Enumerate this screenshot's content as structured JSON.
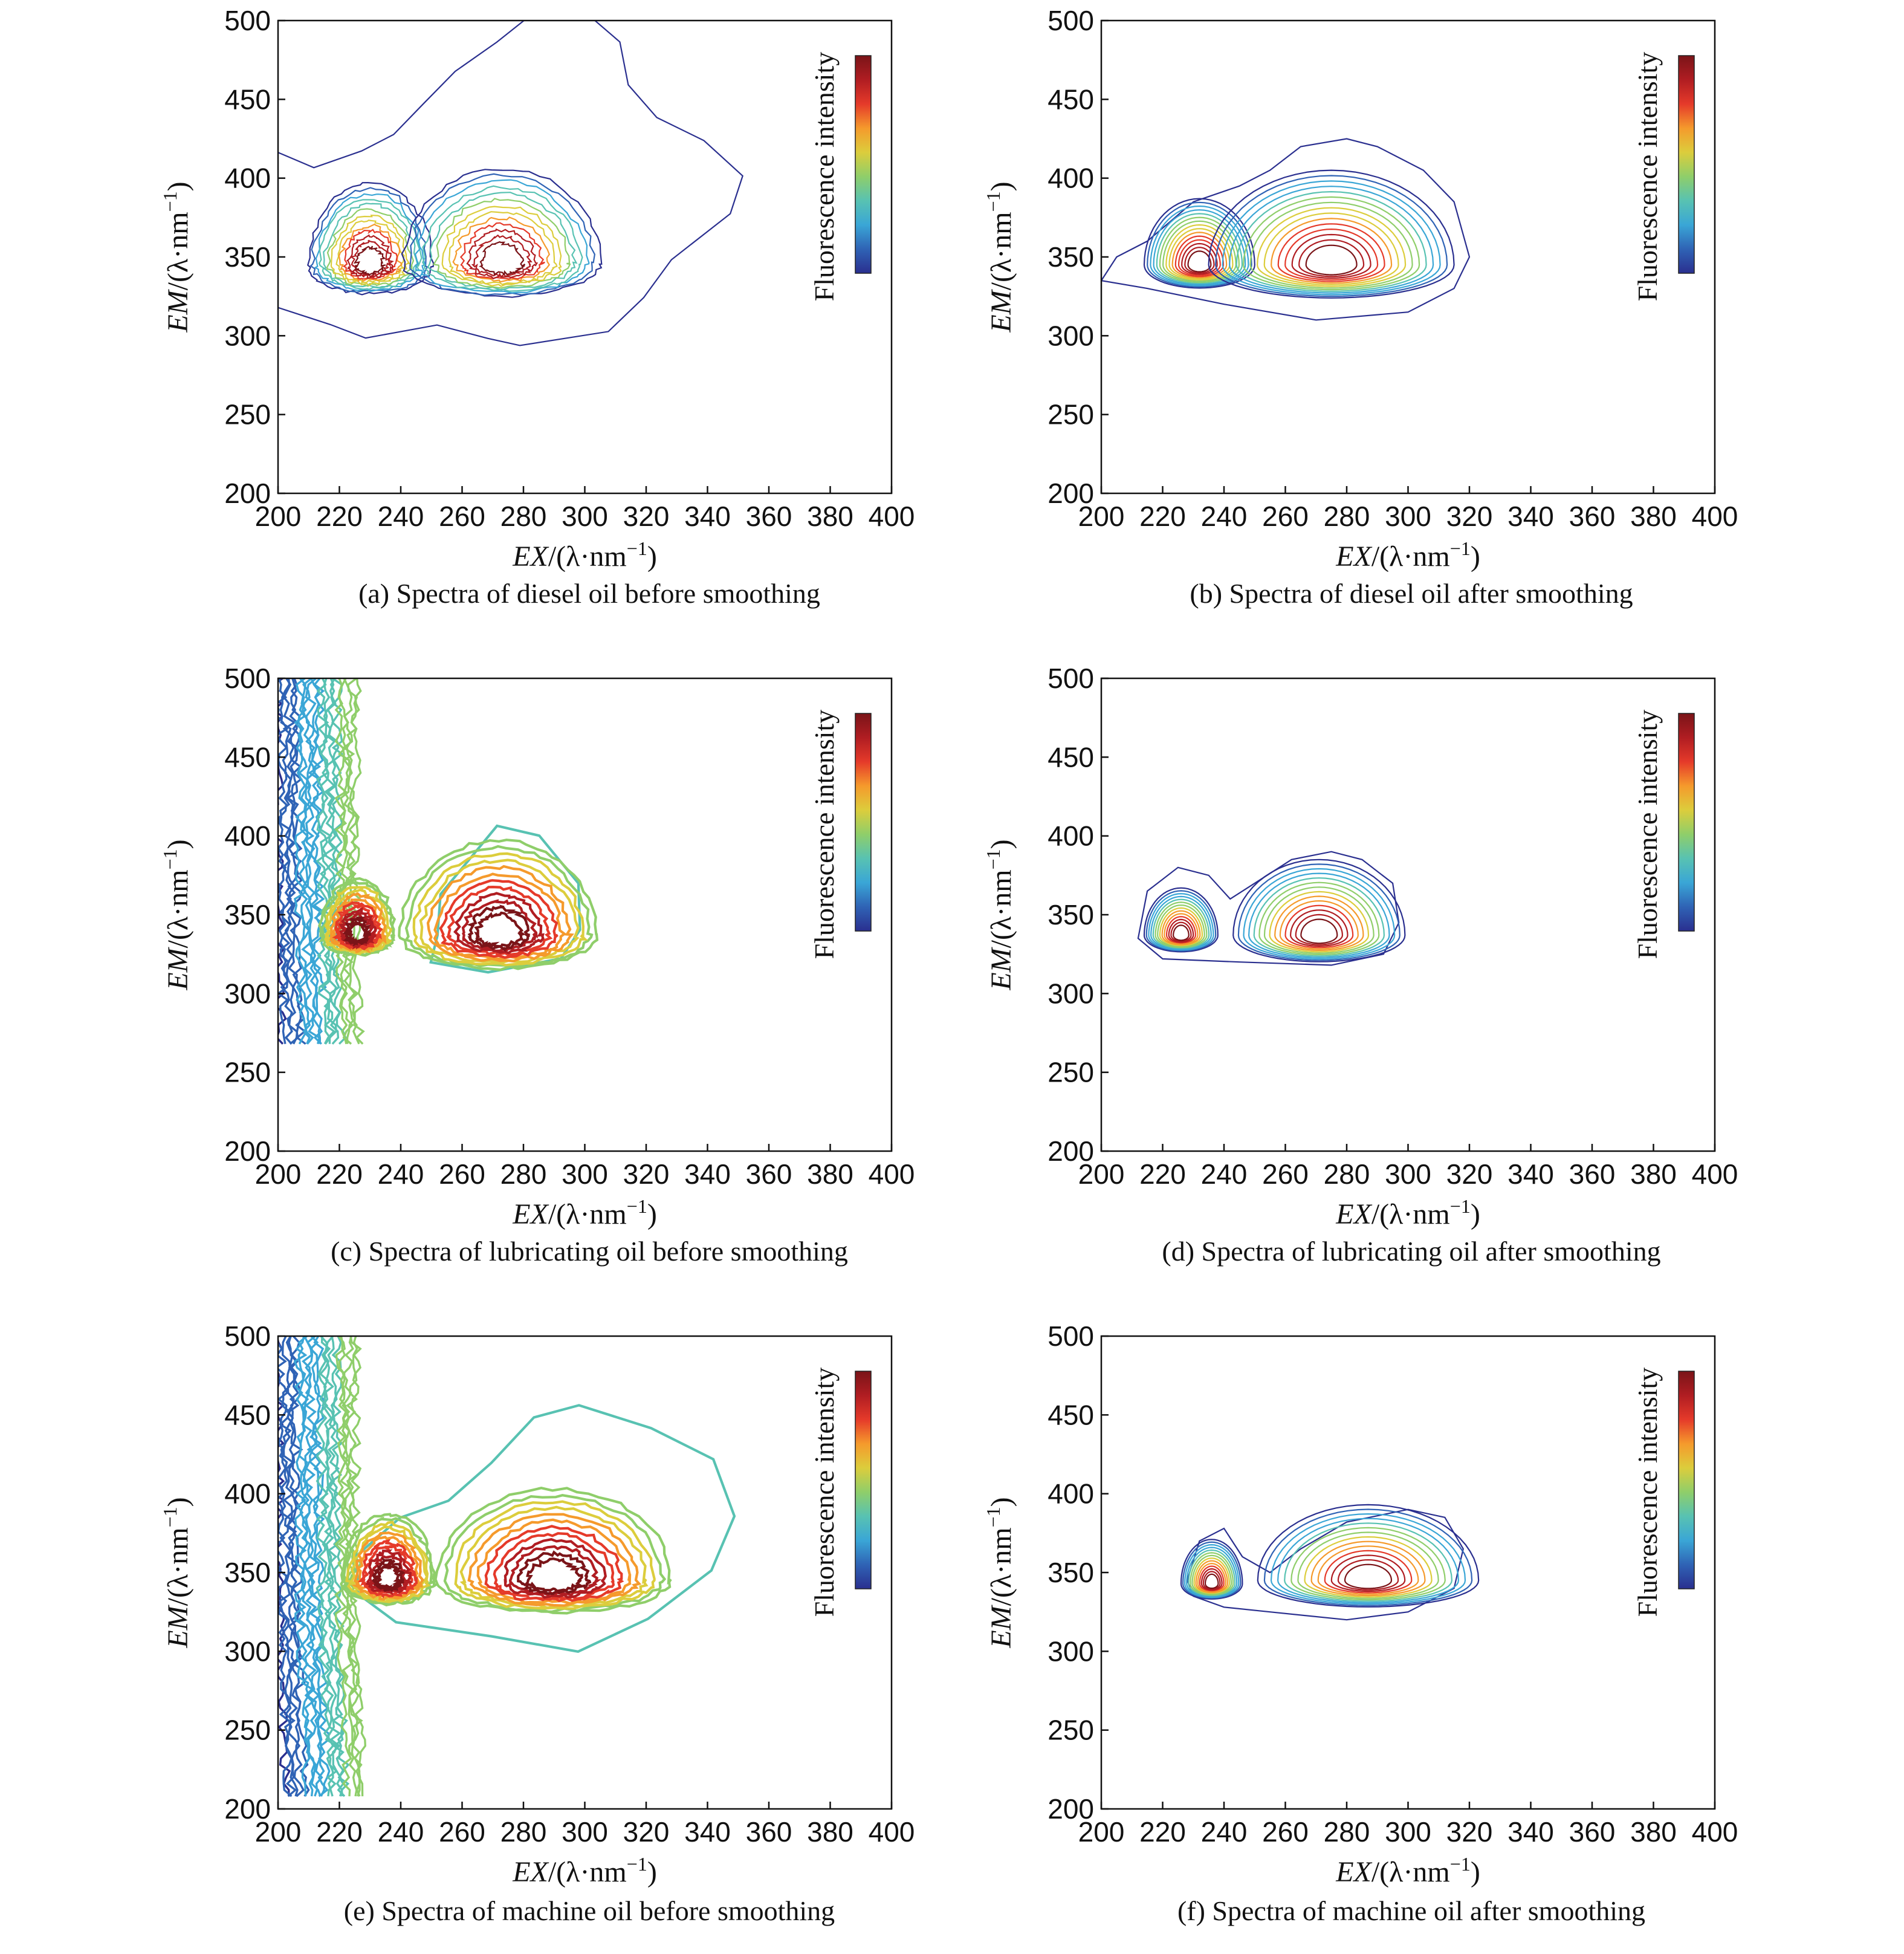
{
  "figure": {
    "axis_x_label_main": "EX",
    "axis_y_label_main": "EM",
    "axis_label_unit": "/(λ·nm",
    "axis_label_exponent": "−1",
    "axis_label_close": ")",
    "colorbar_label": "Fluorescence intensity",
    "colormap": [
      "#2a2f8f",
      "#2f63b5",
      "#3aa6d6",
      "#58c2b2",
      "#8fce6a",
      "#dccd3c",
      "#f59a2c",
      "#e53a2a",
      "#b01d22",
      "#7a1418"
    ]
  },
  "chart_data": [
    {
      "id": "a",
      "type": "contour",
      "caption": "(a) Spectra of diesel oil before smoothing",
      "xlabel": "EX/(λ·nm−1)",
      "ylabel": "EM/(λ·nm−1)",
      "xlim": [
        200,
        400
      ],
      "ylim": [
        200,
        500
      ],
      "xticks": [
        200,
        220,
        240,
        260,
        280,
        300,
        320,
        340,
        360,
        380,
        400
      ],
      "yticks": [
        200,
        250,
        300,
        350,
        400,
        450,
        500
      ],
      "style": "noisy",
      "peaks": [
        {
          "ex": 230,
          "em": 345,
          "rx": 20,
          "ry": 52
        },
        {
          "ex": 273,
          "em": 346,
          "rx": 32,
          "ry": 60
        }
      ],
      "outer_contour": [
        [
          200,
          420
        ],
        [
          210,
          405
        ],
        [
          225,
          415
        ],
        [
          240,
          430
        ],
        [
          250,
          450
        ],
        [
          260,
          470
        ],
        [
          270,
          485
        ],
        [
          280,
          500
        ],
        [
          300,
          500
        ],
        [
          310,
          485
        ],
        [
          315,
          460
        ],
        [
          325,
          440
        ],
        [
          340,
          425
        ],
        [
          350,
          400
        ],
        [
          345,
          375
        ],
        [
          330,
          350
        ],
        [
          320,
          325
        ],
        [
          310,
          305
        ],
        [
          280,
          295
        ],
        [
          270,
          300
        ],
        [
          250,
          305
        ],
        [
          230,
          300
        ],
        [
          215,
          305
        ],
        [
          200,
          320
        ]
      ],
      "levels": 13
    },
    {
      "id": "b",
      "type": "contour",
      "caption": "(b) Spectra of diesel oil after smoothing",
      "xlabel": "EX/(λ·nm−1)",
      "ylabel": "EM/(λ·nm−1)",
      "xlim": [
        200,
        400
      ],
      "ylim": [
        200,
        500
      ],
      "xticks": [
        200,
        220,
        240,
        260,
        280,
        300,
        320,
        340,
        360,
        380,
        400
      ],
      "yticks": [
        200,
        250,
        300,
        350,
        400,
        450,
        500
      ],
      "style": "smooth",
      "peaks": [
        {
          "ex": 232,
          "em": 345,
          "rx": 18,
          "ry": 42
        },
        {
          "ex": 275,
          "em": 345,
          "rx": 40,
          "ry": 60
        }
      ],
      "outer_contour": [
        [
          200,
          335
        ],
        [
          205,
          350
        ],
        [
          215,
          360
        ],
        [
          230,
          385
        ],
        [
          245,
          395
        ],
        [
          255,
          405
        ],
        [
          265,
          420
        ],
        [
          280,
          425
        ],
        [
          290,
          420
        ],
        [
          305,
          405
        ],
        [
          315,
          385
        ],
        [
          320,
          350
        ],
        [
          315,
          330
        ],
        [
          300,
          315
        ],
        [
          270,
          310
        ],
        [
          240,
          320
        ],
        [
          215,
          330
        ]
      ],
      "levels": 15
    },
    {
      "id": "c",
      "type": "contour",
      "caption": "(c) Spectra of lubricating oil before smoothing",
      "xlabel": "EX/(λ·nm−1)",
      "ylabel": "EM/(λ·nm−1)",
      "xlim": [
        200,
        400
      ],
      "ylim": [
        200,
        500
      ],
      "xticks": [
        200,
        220,
        240,
        260,
        280,
        300,
        320,
        340,
        360,
        380,
        400
      ],
      "yticks": [
        200,
        250,
        300,
        350,
        400,
        450,
        500
      ],
      "style": "noisy-thick",
      "peaks": [
        {
          "ex": 226,
          "em": 337,
          "rx": 12,
          "ry": 36
        },
        {
          "ex": 272,
          "em": 337,
          "rx": 32,
          "ry": 60
        }
      ],
      "outer_contour": [
        [
          250,
          335
        ],
        [
          255,
          365
        ],
        [
          270,
          405
        ],
        [
          285,
          400
        ],
        [
          298,
          370
        ],
        [
          298,
          340
        ],
        [
          290,
          320
        ],
        [
          270,
          315
        ],
        [
          250,
          320
        ]
      ],
      "edge_band": true,
      "levels": 12
    },
    {
      "id": "d",
      "type": "contour",
      "caption": "(d) Spectra of lubricating oil after smoothing",
      "xlabel": "EX/(λ·nm−1)",
      "ylabel": "EM/(λ·nm−1)",
      "xlim": [
        200,
        400
      ],
      "ylim": [
        200,
        500
      ],
      "xticks": [
        200,
        220,
        240,
        260,
        280,
        300,
        320,
        340,
        360,
        380,
        400
      ],
      "yticks": [
        200,
        250,
        300,
        350,
        400,
        450,
        500
      ],
      "style": "smooth",
      "peaks": [
        {
          "ex": 226,
          "em": 337,
          "rx": 12,
          "ry": 30
        },
        {
          "ex": 271,
          "em": 337,
          "rx": 28,
          "ry": 48
        }
      ],
      "outer_contour": [
        [
          212,
          335
        ],
        [
          215,
          365
        ],
        [
          225,
          380
        ],
        [
          235,
          375
        ],
        [
          242,
          360
        ],
        [
          250,
          370
        ],
        [
          262,
          385
        ],
        [
          275,
          390
        ],
        [
          285,
          385
        ],
        [
          295,
          370
        ],
        [
          297,
          345
        ],
        [
          292,
          325
        ],
        [
          275,
          318
        ],
        [
          245,
          320
        ],
        [
          220,
          322
        ]
      ],
      "levels": 14
    },
    {
      "id": "e",
      "type": "contour",
      "caption": "(e) Spectra of machine oil before smoothing",
      "xlabel": "EX/(λ·nm−1)",
      "ylabel": "EM/(λ·nm−1)",
      "xlim": [
        200,
        400
      ],
      "ylim": [
        200,
        500
      ],
      "xticks": [
        200,
        220,
        240,
        260,
        280,
        300,
        320,
        340,
        360,
        380,
        400
      ],
      "yticks": [
        200,
        250,
        300,
        350,
        400,
        450,
        500
      ],
      "style": "noisy-thick",
      "peaks": [
        {
          "ex": 236,
          "em": 345,
          "rx": 15,
          "ry": 42
        },
        {
          "ex": 290,
          "em": 345,
          "rx": 38,
          "ry": 58
        }
      ],
      "outer_contour": [
        [
          225,
          360
        ],
        [
          240,
          385
        ],
        [
          255,
          395
        ],
        [
          270,
          420
        ],
        [
          285,
          450
        ],
        [
          300,
          458
        ],
        [
          320,
          440
        ],
        [
          340,
          420
        ],
        [
          348,
          385
        ],
        [
          340,
          350
        ],
        [
          320,
          320
        ],
        [
          300,
          302
        ],
        [
          270,
          310
        ],
        [
          240,
          320
        ],
        [
          225,
          335
        ]
      ],
      "edge_band": true,
      "levels": 12
    },
    {
      "id": "f",
      "type": "contour",
      "caption": "(f) Spectra of machine oil after smoothing",
      "xlabel": "EX/(λ·nm−1)",
      "ylabel": "EM/(λ·nm−1)",
      "xlim": [
        200,
        400
      ],
      "ylim": [
        200,
        500
      ],
      "xticks": [
        200,
        220,
        240,
        260,
        280,
        300,
        320,
        340,
        360,
        380,
        400
      ],
      "yticks": [
        200,
        250,
        300,
        350,
        400,
        450,
        500
      ],
      "style": "smooth",
      "peaks": [
        {
          "ex": 236,
          "em": 343,
          "rx": 10,
          "ry": 28
        },
        {
          "ex": 287,
          "em": 345,
          "rx": 36,
          "ry": 48
        }
      ],
      "outer_contour": [
        [
          228,
          345
        ],
        [
          232,
          370
        ],
        [
          240,
          378
        ],
        [
          246,
          360
        ],
        [
          255,
          350
        ],
        [
          265,
          365
        ],
        [
          280,
          382
        ],
        [
          300,
          390
        ],
        [
          312,
          385
        ],
        [
          318,
          365
        ],
        [
          315,
          340
        ],
        [
          300,
          325
        ],
        [
          280,
          320
        ],
        [
          255,
          325
        ],
        [
          240,
          328
        ],
        [
          230,
          335
        ]
      ],
      "levels": 14
    }
  ]
}
